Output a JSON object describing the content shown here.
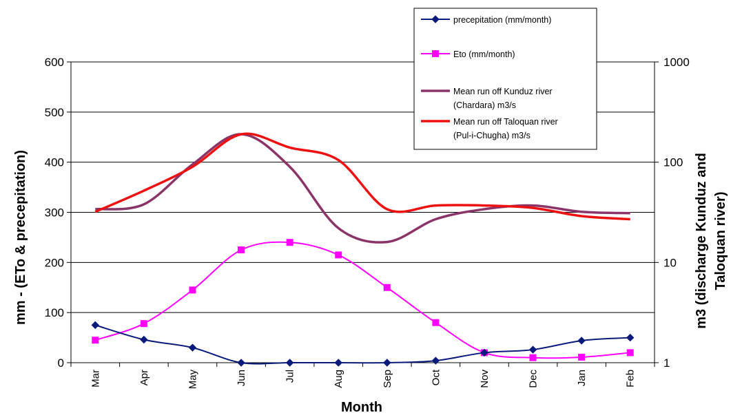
{
  "chart_data": {
    "type": "line",
    "title": "",
    "xlabel": "Month",
    "ylabel_left": "mm - (ETo & precepitation)",
    "ylabel_right": "m3 (discharge Kunduz and Taloquan river)",
    "ylim_left": [
      0,
      600
    ],
    "yticks_left": [
      "0",
      "100",
      "200",
      "300",
      "400",
      "500",
      "600"
    ],
    "ylim_right": [
      1,
      1000
    ],
    "yscale_right": "log",
    "yticks_right": [
      "1",
      "10",
      "100",
      "1000"
    ],
    "grid": "horizontal",
    "legend_position": "top-right",
    "categories": [
      "Mar",
      "Apr",
      "May",
      "Jun",
      "Jul",
      "Aug",
      "Sep",
      "Oct",
      "Nov",
      "Dec",
      "Jan",
      "Feb"
    ],
    "series": [
      {
        "name": "precepitation (mm/month)",
        "axis": "left",
        "color": "#0a1a7a",
        "marker": "diamond",
        "values": [
          75,
          46,
          30,
          0,
          0,
          0,
          0,
          4,
          20,
          26,
          44,
          50
        ]
      },
      {
        "name": "Eto (mm/month)",
        "axis": "left",
        "color": "#ff00ff",
        "marker": "square",
        "values": [
          45,
          78,
          145,
          225,
          240,
          215,
          150,
          80,
          20,
          10,
          11,
          20
        ]
      },
      {
        "name": "Mean run off Kunduz river (Chardara) m3/s",
        "axis": "right",
        "color": "#8a3468",
        "marker": "none",
        "values": [
          34,
          38,
          95,
          190,
          90,
          22,
          16,
          27,
          34,
          37,
          32,
          31
        ]
      },
      {
        "name": "Mean run off Taloquan river (Pul-i-Chugha) m3/s",
        "axis": "right",
        "color": "#ee1111",
        "marker": "none",
        "values": [
          32,
          52,
          90,
          190,
          140,
          105,
          34,
          37,
          37,
          35,
          29,
          27
        ]
      }
    ]
  },
  "legend": {
    "items": [
      [
        "precepitation (mm/month)"
      ],
      [
        "Eto (mm/month)"
      ],
      [
        "Mean run off Kunduz river",
        "(Chardara) m3/s"
      ],
      [
        "Mean run off Taloquan river",
        "(Pul-i-Chugha) m3/s"
      ]
    ]
  }
}
